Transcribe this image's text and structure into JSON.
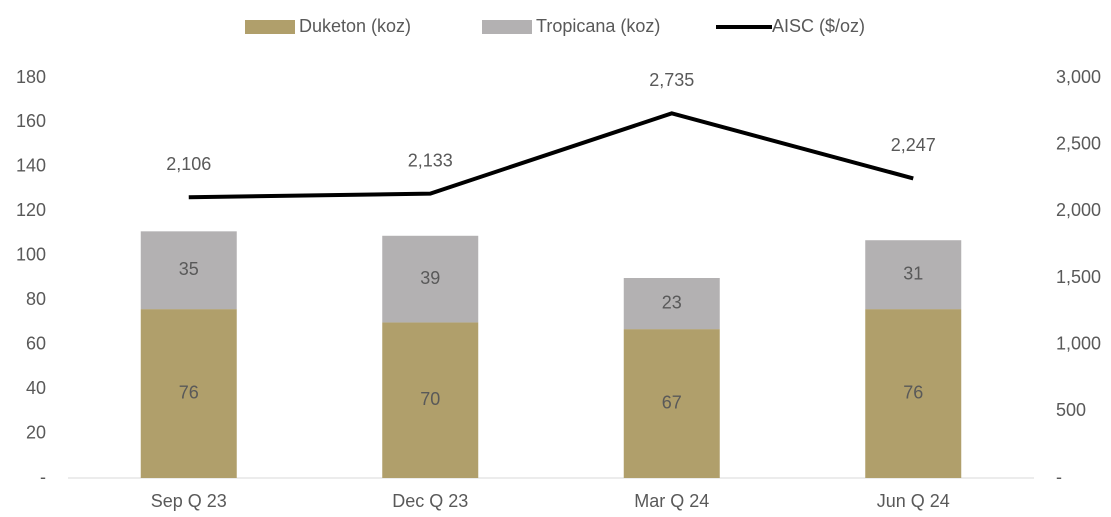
{
  "chart_data": {
    "type": "bar",
    "stacked": true,
    "categories": [
      "Sep Q 23",
      "Dec Q 23",
      "Mar Q 24",
      "Jun Q 24"
    ],
    "series": [
      {
        "name": "Duketon (koz)",
        "color": "#b09f6b",
        "values": [
          76,
          70,
          67,
          76
        ]
      },
      {
        "name": "Tropicana (koz)",
        "color": "#b3b1b2",
        "values": [
          35,
          39,
          23,
          31
        ]
      },
      {
        "name": "AISC ($/oz)",
        "color": "#000000",
        "type": "line",
        "axis": "y2",
        "values": [
          2106,
          2133,
          2735,
          2247
        ],
        "value_labels": [
          "2,106",
          "2,133",
          "2,735",
          "2,247"
        ]
      }
    ],
    "ylim": [
      0,
      180
    ],
    "yticks": [
      {
        "value": 0,
        "label": "-"
      },
      20,
      40,
      60,
      80,
      100,
      120,
      140,
      160,
      180
    ],
    "y2lim": [
      0,
      3000
    ],
    "y2ticks": [
      {
        "value": 0,
        "label": "-"
      },
      500,
      {
        "value": 1000,
        "label": "1,000"
      },
      {
        "value": 1500,
        "label": "1,500"
      },
      {
        "value": 2000,
        "label": "2,000"
      },
      {
        "value": 2500,
        "label": "2,500"
      },
      {
        "value": 3000,
        "label": "3,000"
      }
    ],
    "grid": false,
    "legend": "top"
  }
}
